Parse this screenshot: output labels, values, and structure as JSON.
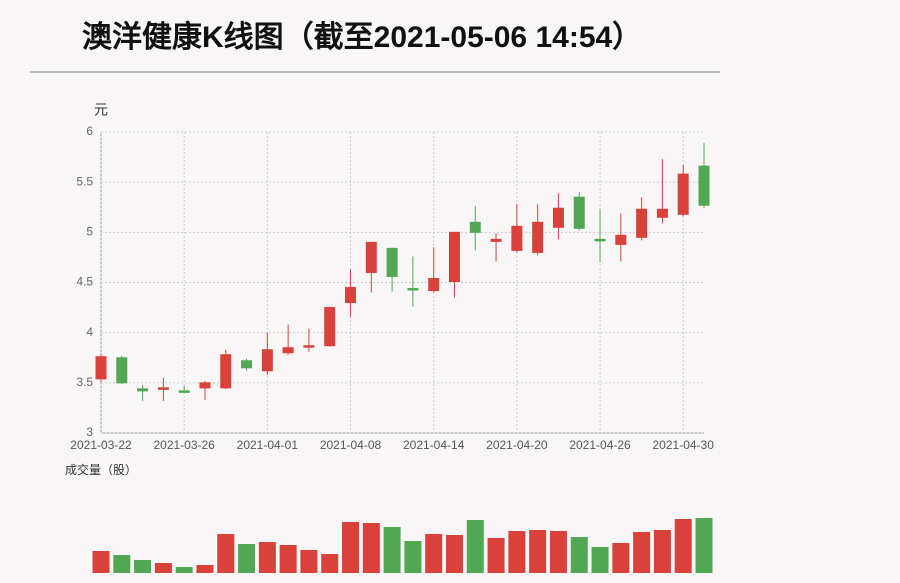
{
  "chart_data": [
    {
      "type": "candlestick",
      "title": "澳洋健康K线图（截至2021-05-06 14:54）",
      "y_label": "元",
      "categories": [
        "2021-03-22",
        null,
        null,
        null,
        "2021-03-26",
        null,
        null,
        null,
        "2021-04-01",
        null,
        null,
        null,
        "2021-04-08",
        null,
        null,
        null,
        "2021-04-14",
        null,
        null,
        null,
        "2021-04-20",
        null,
        null,
        null,
        "2021-04-26",
        null,
        null,
        null,
        "2021-04-30",
        null
      ],
      "open": [
        3.54,
        3.75,
        3.44,
        3.44,
        3.42,
        3.45,
        3.45,
        3.72,
        3.62,
        3.8,
        3.86,
        3.87,
        4.3,
        4.6,
        4.84,
        4.44,
        4.42,
        4.51,
        5.1,
        4.91,
        4.82,
        4.8,
        5.05,
        5.35,
        4.93,
        4.88,
        4.95,
        5.15,
        5.18,
        5.66
      ],
      "high": [
        3.79,
        3.77,
        3.48,
        3.55,
        3.47,
        3.52,
        3.83,
        3.74,
        4.0,
        4.08,
        4.04,
        4.26,
        4.63,
        4.9,
        4.85,
        4.76,
        4.85,
        5.0,
        5.26,
        4.99,
        5.28,
        5.28,
        5.39,
        5.4,
        5.23,
        5.19,
        5.35,
        5.73,
        5.67,
        5.89
      ],
      "low": [
        3.51,
        3.49,
        3.32,
        3.32,
        3.4,
        3.33,
        3.44,
        3.62,
        3.58,
        3.78,
        3.81,
        3.86,
        4.16,
        4.4,
        4.41,
        4.26,
        4.4,
        4.35,
        4.82,
        4.71,
        4.8,
        4.77,
        4.93,
        5.02,
        4.7,
        4.71,
        4.92,
        5.09,
        5.16,
        5.24
      ],
      "close": [
        3.76,
        3.5,
        3.42,
        3.45,
        3.41,
        3.5,
        3.78,
        3.65,
        3.83,
        3.85,
        3.87,
        4.25,
        4.45,
        4.9,
        4.56,
        4.43,
        4.54,
        5.0,
        5.0,
        4.93,
        5.06,
        5.1,
        5.24,
        5.04,
        4.92,
        4.97,
        5.23,
        5.23,
        5.58,
        5.27
      ],
      "up_color": "#d9413b",
      "down_color": "#52a852",
      "ylim": [
        3,
        6
      ],
      "yticks": [
        3,
        3.5,
        4,
        4.5,
        5,
        5.5,
        6
      ],
      "grid": true
    },
    {
      "type": "bar",
      "title": "成交量（股）",
      "values": [
        22,
        18,
        13,
        10,
        6,
        8,
        39,
        29,
        31,
        28,
        23,
        19,
        51,
        50,
        46,
        32,
        39,
        38,
        53,
        35,
        42,
        43,
        42,
        36,
        26,
        30,
        41,
        43,
        54,
        55
      ]
    }
  ]
}
